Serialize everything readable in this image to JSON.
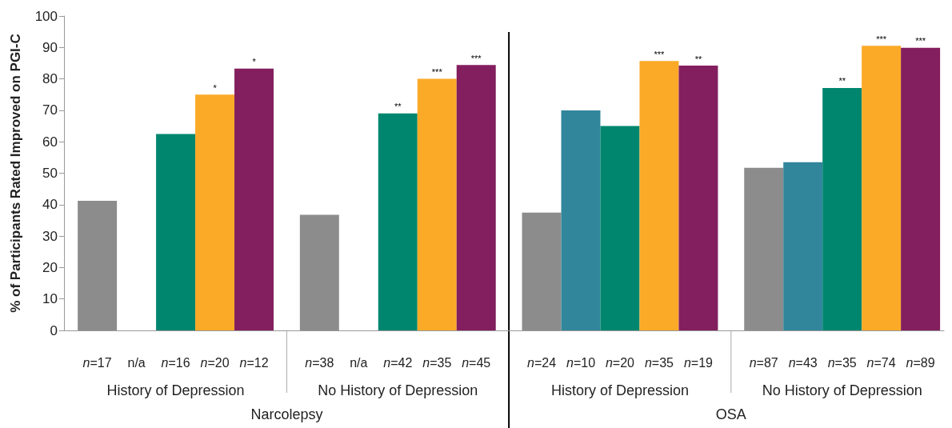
{
  "chart_data": {
    "type": "bar",
    "ylabel": "% of Participants Rated Improved on PGI-C",
    "categories": [
      "n=17",
      "n/a",
      "n=16",
      "n=20",
      "n=12",
      "n=38",
      "n/a",
      "n=42",
      "n=35",
      "n=45",
      "n=24",
      "n=10",
      "n=20",
      "n=35",
      "n=19",
      "n=87",
      "n=43",
      "n=35",
      "n=74",
      "n=89"
    ],
    "values": [
      41.2,
      null,
      62.5,
      75,
      83.3,
      36.8,
      null,
      69,
      80,
      84.4,
      37.5,
      70,
      65,
      85.7,
      84.2,
      51.7,
      53.5,
      77.1,
      90.5,
      89.9
    ],
    "colors": [
      "#8c8c8c",
      "#31869b",
      "#00866f",
      "#fbaa27",
      "#831f5e",
      "#8c8c8c",
      "#31869b",
      "#00866f",
      "#fbaa27",
      "#831f5e",
      "#8c8c8c",
      "#31869b",
      "#00866f",
      "#fbaa27",
      "#831f5e",
      "#8c8c8c",
      "#31869b",
      "#00866f",
      "#fbaa27",
      "#831f5e"
    ],
    "value_labels": [
      null,
      null,
      null,
      "*",
      "*",
      null,
      null,
      "**",
      "***",
      "***",
      null,
      null,
      null,
      "***",
      "**",
      null,
      null,
      "**",
      "***",
      "***"
    ],
    "annotations": [
      "History of Depression",
      "No History of Depression",
      "History of Depression",
      "No History of Depression",
      "Narcolepsy",
      "OSA"
    ],
    "ylim": [
      0,
      100
    ],
    "yticks": [
      0,
      10,
      20,
      30,
      40,
      50,
      60,
      70,
      80,
      90,
      100
    ],
    "grid": false
  }
}
